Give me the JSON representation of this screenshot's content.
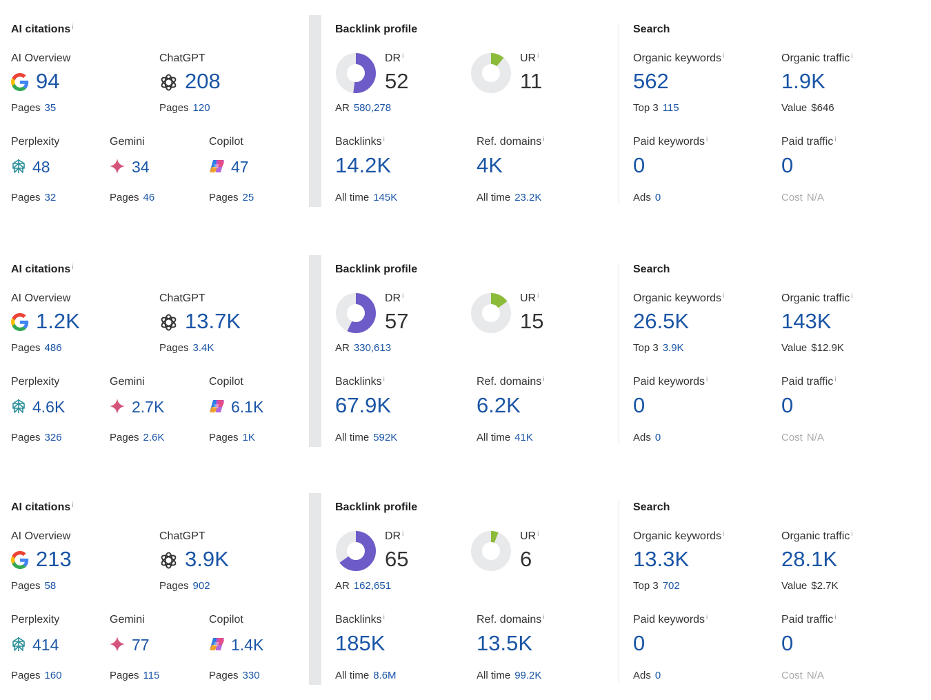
{
  "labels": {
    "ai_citations": "AI citations",
    "info": "i",
    "ai_overview": "AI Overview",
    "chatgpt": "ChatGPT",
    "perplexity": "Perplexity",
    "gemini": "Gemini",
    "copilot": "Copilot",
    "pages": "Pages",
    "backlink_profile": "Backlink profile",
    "dr": "DR",
    "ur": "UR",
    "ar": "AR",
    "backlinks": "Backlinks",
    "ref_domains": "Ref. domains",
    "all_time": "All time",
    "search": "Search",
    "organic_keywords": "Organic keywords",
    "organic_traffic": "Organic traffic",
    "top3": "Top 3",
    "value": "Value",
    "paid_keywords": "Paid keywords",
    "paid_traffic": "Paid traffic",
    "ads": "Ads",
    "cost": "Cost"
  },
  "icons": {
    "google": "google-g-icon",
    "chatgpt": "openai-logo-icon",
    "perplexity": "perplexity-logo-icon",
    "gemini": "gemini-sparkle-icon",
    "copilot": "copilot-logo-icon"
  },
  "colors": {
    "value_blue": "#1a55a6",
    "dr_purple": "#6d5cc7",
    "ur_green": "#8bbb39",
    "donut_track": "#e8e9eb"
  },
  "rows": [
    {
      "ai": {
        "ai_overview": "94",
        "ai_overview_pages": "35",
        "chatgpt": "208",
        "chatgpt_pages": "120",
        "perplexity": "48",
        "perplexity_pages": "32",
        "gemini": "34",
        "gemini_pages": "46",
        "copilot": "47",
        "copilot_pages": "25"
      },
      "backlink": {
        "dr": "52",
        "dr_value": 52,
        "ur": "11",
        "ur_value": 11,
        "ar": "580,278",
        "backlinks": "14.2K",
        "backlinks_all_time": "145K",
        "ref_domains": "4K",
        "ref_domains_all_time": "23.2K"
      },
      "search": {
        "organic_keywords": "562",
        "top3": "115",
        "organic_traffic": "1.9K",
        "value": "$646",
        "paid_keywords": "0",
        "ads": "0",
        "paid_traffic": "0",
        "cost": "N/A"
      }
    },
    {
      "ai": {
        "ai_overview": "1.2K",
        "ai_overview_pages": "486",
        "chatgpt": "13.7K",
        "chatgpt_pages": "3.4K",
        "perplexity": "4.6K",
        "perplexity_pages": "326",
        "gemini": "2.7K",
        "gemini_pages": "2.6K",
        "copilot": "6.1K",
        "copilot_pages": "1K"
      },
      "backlink": {
        "dr": "57",
        "dr_value": 57,
        "ur": "15",
        "ur_value": 15,
        "ar": "330,613",
        "backlinks": "67.9K",
        "backlinks_all_time": "592K",
        "ref_domains": "6.2K",
        "ref_domains_all_time": "41K"
      },
      "search": {
        "organic_keywords": "26.5K",
        "top3": "3.9K",
        "organic_traffic": "143K",
        "value": "$12.9K",
        "paid_keywords": "0",
        "ads": "0",
        "paid_traffic": "0",
        "cost": "N/A"
      }
    },
    {
      "ai": {
        "ai_overview": "213",
        "ai_overview_pages": "58",
        "chatgpt": "3.9K",
        "chatgpt_pages": "902",
        "perplexity": "414",
        "perplexity_pages": "160",
        "gemini": "77",
        "gemini_pages": "115",
        "copilot": "1.4K",
        "copilot_pages": "330"
      },
      "backlink": {
        "dr": "65",
        "dr_value": 65,
        "ur": "6",
        "ur_value": 6,
        "ar": "162,651",
        "backlinks": "185K",
        "backlinks_all_time": "8.6M",
        "ref_domains": "13.5K",
        "ref_domains_all_time": "99.2K"
      },
      "search": {
        "organic_keywords": "13.3K",
        "top3": "702",
        "organic_traffic": "28.1K",
        "value": "$2.7K",
        "paid_keywords": "0",
        "ads": "0",
        "paid_traffic": "0",
        "cost": "N/A"
      }
    }
  ]
}
